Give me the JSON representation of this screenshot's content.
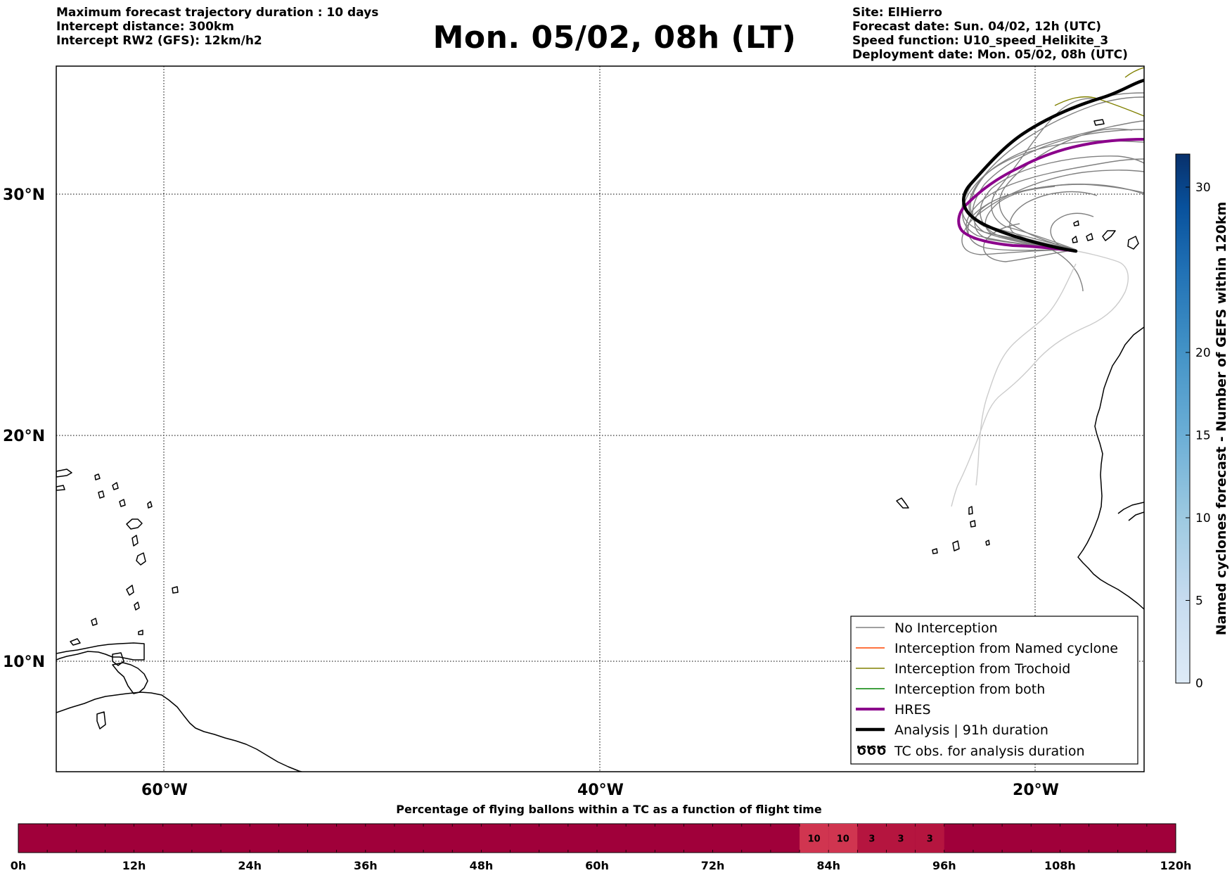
{
  "header": {
    "left_lines": [
      "Maximum forecast trajectory duration : 10 days",
      "Intercept distance: 300km",
      "Intercept RW2 (GFS):  12km/h2"
    ],
    "title": "Mon. 05/02, 08h (LT)",
    "right_lines": [
      "Site: ElHierro",
      "Forecast date: Sun. 04/02, 12h (UTC)",
      "Speed function: U10_speed_Helikite_3",
      "Deployment date: Mon. 05/02, 08h (UTC)"
    ]
  },
  "map": {
    "lon_range": [
      -65,
      -15
    ],
    "lat_range": [
      5,
      35
    ],
    "lat_labels": [
      "30°N",
      "20°N",
      "10°N"
    ],
    "lon_labels": [
      "60°W",
      "40°W",
      "20°W"
    ],
    "grid": "dotted"
  },
  "legend": {
    "items": [
      {
        "label": "No Interception",
        "color": "#808080",
        "style": "thin"
      },
      {
        "label": "Interception from Named cyclone",
        "color": "#ff4500",
        "style": "thin"
      },
      {
        "label": "Interception from Trochoid",
        "color": "#808000",
        "style": "thin"
      },
      {
        "label": "Interception from both",
        "color": "#008000",
        "style": "thin"
      },
      {
        "label": "HRES",
        "color": "#8b008b",
        "style": "thick"
      },
      {
        "label": "Analysis | 91h duration",
        "color": "#000000",
        "style": "thick"
      },
      {
        "label": "TC obs. for analysis duration",
        "color": "#000000",
        "style": "symbol",
        "symbol": "ԾԾԾ"
      }
    ]
  },
  "colorbar": {
    "label": "Named cyclones forecast - Number of GEFS within 120km",
    "min": 0,
    "max": 32,
    "ticks": [
      "0",
      "5",
      "10",
      "15",
      "20",
      "30"
    ],
    "colors": [
      "#deebf7",
      "#c6dbef",
      "#9ecae1",
      "#6baed6",
      "#4292c6",
      "#2171b5",
      "#08519c",
      "#08306b"
    ]
  },
  "timeline": {
    "title": "Percentage of flying ballons within a TC as a function of flight time",
    "base_color": "#a0003a",
    "ticks": [
      "0h",
      "12h",
      "24h",
      "36h",
      "48h",
      "60h",
      "72h",
      "84h",
      "96h",
      "108h",
      "120h"
    ],
    "hours_max": 120,
    "segments": [
      {
        "start_h": 81,
        "end_h": 84,
        "value": "10",
        "color": "#d03550"
      },
      {
        "start_h": 84,
        "end_h": 87,
        "value": "10",
        "color": "#d03550"
      },
      {
        "start_h": 87,
        "end_h": 90,
        "value": "3",
        "color": "#b5153f"
      },
      {
        "start_h": 90,
        "end_h": 93,
        "value": "3",
        "color": "#b5153f"
      },
      {
        "start_h": 93,
        "end_h": 96,
        "value": "3",
        "color": "#b5153f"
      }
    ]
  }
}
